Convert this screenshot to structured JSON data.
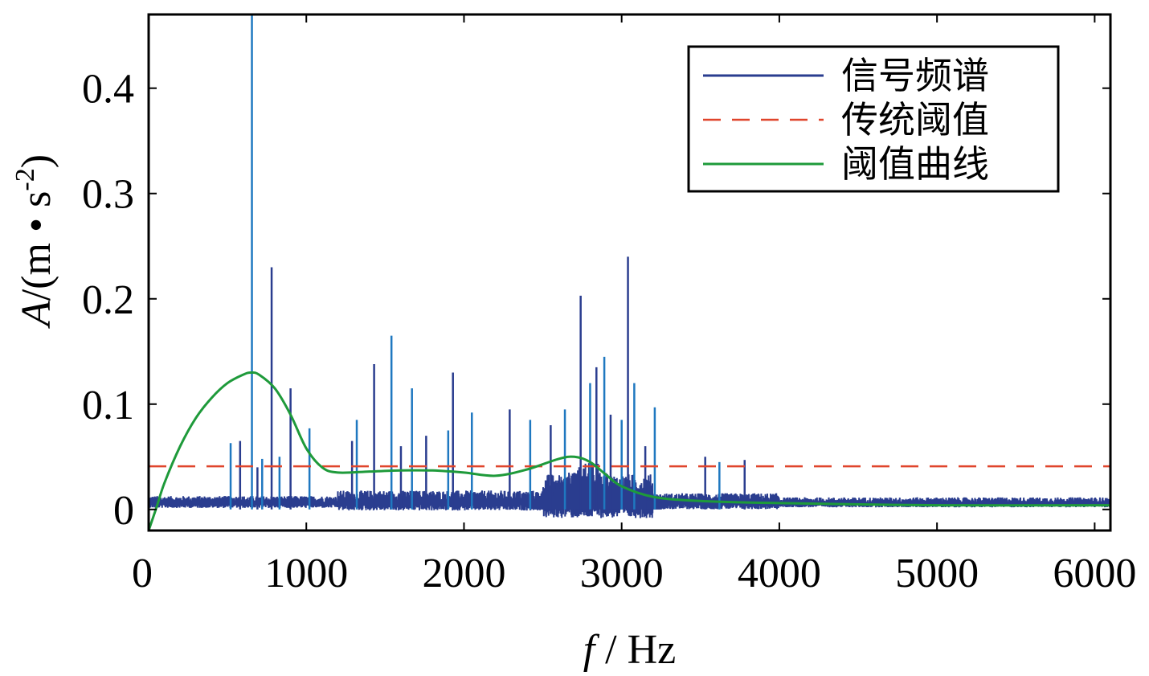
{
  "chart_data": {
    "type": "line",
    "xlabel": "f / Hz",
    "ylabel": "A/(m • s-2)",
    "xlim": [
      0,
      6100
    ],
    "ylim": [
      -0.02,
      0.47
    ],
    "x_ticks": [
      0,
      1000,
      2000,
      3000,
      4000,
      5000,
      6000
    ],
    "x_tick_labels": [
      "0",
      "1000",
      "2000",
      "3000",
      "4000",
      "5000",
      "6000"
    ],
    "y_ticks": [
      0,
      0.1,
      0.2,
      0.3,
      0.4
    ],
    "y_tick_labels": [
      "0",
      "0.1",
      "0.2",
      "0.3",
      "0.4"
    ],
    "grid": false,
    "legend_position": "top-right",
    "colors": {
      "signal": "#2a3d8f",
      "signal_highlight": "#1f78c0",
      "traditional_threshold": "#e0452c",
      "threshold_curve": "#1e9a3a"
    },
    "series": [
      {
        "name": "信号频谱",
        "style": "solid",
        "baseline_level": 0.005,
        "noise_bands": [
          {
            "from": 0,
            "to": 1200,
            "amplitude": 0.006
          },
          {
            "from": 1200,
            "to": 2500,
            "amplitude": 0.01
          },
          {
            "from": 2500,
            "to": 3200,
            "amplitude": 0.022
          },
          {
            "from": 3200,
            "to": 4000,
            "amplitude": 0.008
          },
          {
            "from": 4000,
            "to": 6100,
            "amplitude": 0.005
          }
        ],
        "peaks": [
          {
            "x": 520,
            "y": 0.063
          },
          {
            "x": 580,
            "y": 0.065
          },
          {
            "x": 655,
            "y": 0.47
          },
          {
            "x": 690,
            "y": 0.04
          },
          {
            "x": 720,
            "y": 0.048
          },
          {
            "x": 780,
            "y": 0.23
          },
          {
            "x": 830,
            "y": 0.05
          },
          {
            "x": 900,
            "y": 0.115
          },
          {
            "x": 1020,
            "y": 0.077
          },
          {
            "x": 1290,
            "y": 0.065
          },
          {
            "x": 1320,
            "y": 0.085
          },
          {
            "x": 1430,
            "y": 0.138
          },
          {
            "x": 1540,
            "y": 0.165
          },
          {
            "x": 1600,
            "y": 0.06
          },
          {
            "x": 1670,
            "y": 0.115
          },
          {
            "x": 1760,
            "y": 0.07
          },
          {
            "x": 1900,
            "y": 0.075
          },
          {
            "x": 1930,
            "y": 0.13
          },
          {
            "x": 2050,
            "y": 0.092
          },
          {
            "x": 2290,
            "y": 0.095
          },
          {
            "x": 2420,
            "y": 0.085
          },
          {
            "x": 2550,
            "y": 0.08
          },
          {
            "x": 2640,
            "y": 0.095
          },
          {
            "x": 2740,
            "y": 0.203
          },
          {
            "x": 2800,
            "y": 0.12
          },
          {
            "x": 2840,
            "y": 0.135
          },
          {
            "x": 2890,
            "y": 0.145
          },
          {
            "x": 2930,
            "y": 0.09
          },
          {
            "x": 3000,
            "y": 0.085
          },
          {
            "x": 3040,
            "y": 0.24
          },
          {
            "x": 3080,
            "y": 0.12
          },
          {
            "x": 3150,
            "y": 0.06
          },
          {
            "x": 3210,
            "y": 0.097
          },
          {
            "x": 3530,
            "y": 0.05
          },
          {
            "x": 3620,
            "y": 0.045
          },
          {
            "x": 3780,
            "y": 0.047
          }
        ]
      },
      {
        "name": "传统阈值",
        "style": "dashed",
        "x": [
          0,
          6100
        ],
        "y": [
          0.041,
          0.041
        ]
      },
      {
        "name": "阈值曲线",
        "style": "solid",
        "x": [
          0,
          50,
          100,
          200,
          300,
          400,
          500,
          600,
          650,
          700,
          800,
          900,
          1000,
          1100,
          1200,
          1400,
          1600,
          1800,
          2000,
          2200,
          2400,
          2600,
          2700,
          2800,
          2900,
          3000,
          3200,
          3500,
          4000,
          5000,
          6100
        ],
        "y": [
          -0.02,
          0.002,
          0.025,
          0.06,
          0.087,
          0.106,
          0.12,
          0.128,
          0.13,
          0.128,
          0.115,
          0.09,
          0.058,
          0.04,
          0.035,
          0.036,
          0.037,
          0.037,
          0.035,
          0.032,
          0.038,
          0.048,
          0.05,
          0.045,
          0.033,
          0.022,
          0.012,
          0.008,
          0.006,
          0.004,
          0.004
        ]
      }
    ]
  }
}
